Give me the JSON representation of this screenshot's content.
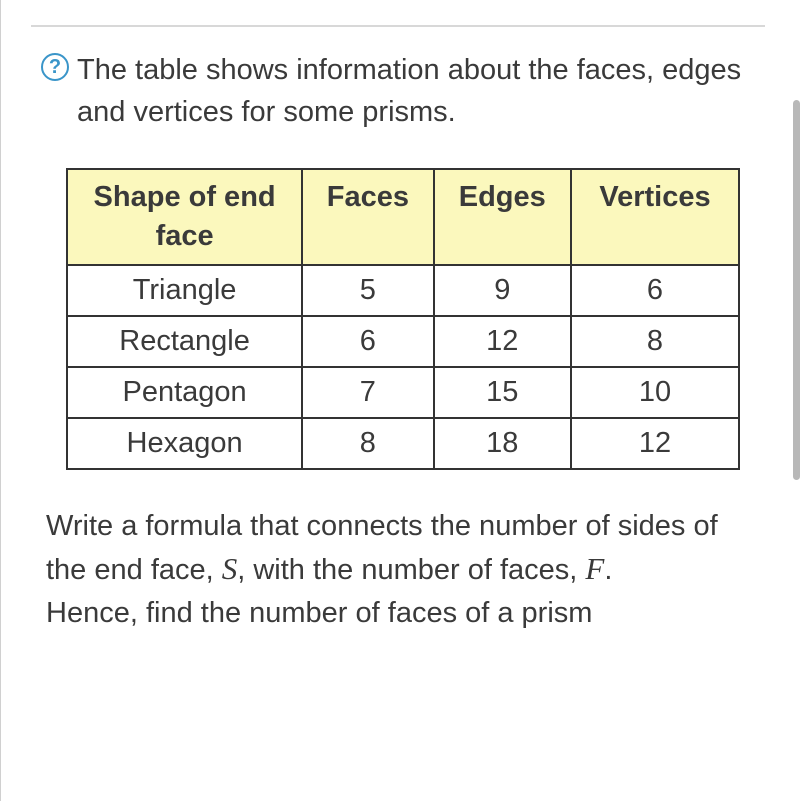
{
  "helpIconGlyph": "?",
  "intro": "The table shows information about the faces, edges and vertices for some prisms.",
  "table": {
    "headerBg": "#fbf8bd",
    "borderColor": "#333333",
    "columns": [
      "Shape of end face",
      "Faces",
      "Edges",
      "Vertices"
    ],
    "rows": [
      {
        "shape": "Triangle",
        "faces": "5",
        "edges": "9",
        "vertices": "6"
      },
      {
        "shape": "Rectangle",
        "faces": "6",
        "edges": "12",
        "vertices": "8"
      },
      {
        "shape": "Pentagon",
        "faces": "7",
        "edges": "15",
        "vertices": "10"
      },
      {
        "shape": "Hexagon",
        "faces": "8",
        "edges": "18",
        "vertices": "12"
      }
    ]
  },
  "prompt": {
    "part1": "Write a formula that connects the number of sides of the end face, ",
    "varS": "S",
    "part2": ", with the number of faces, ",
    "varF": "F",
    "part3": ".",
    "line2": "Hence, find the number of faces of a prism"
  }
}
